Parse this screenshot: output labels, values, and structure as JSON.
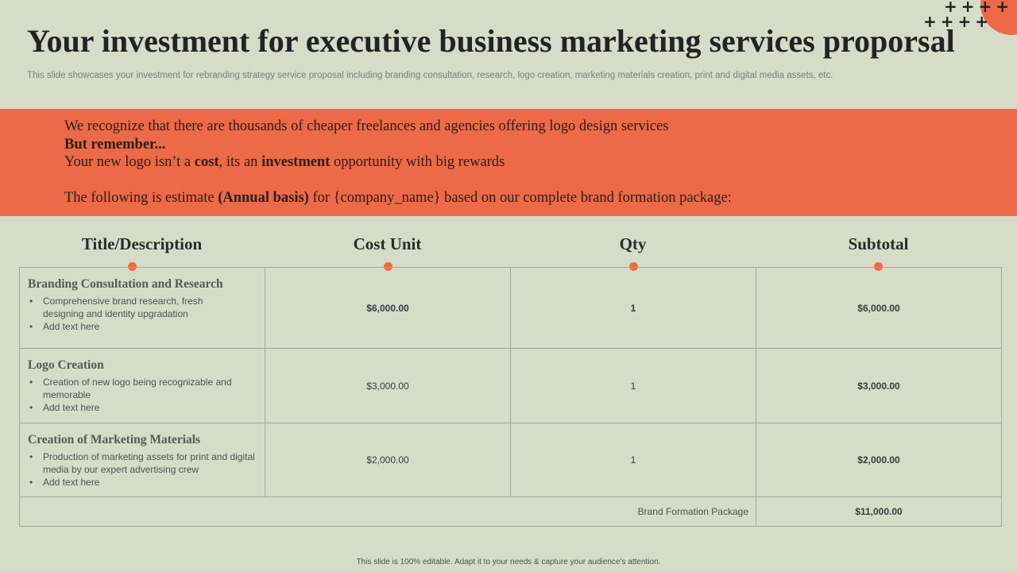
{
  "title": "Your investment for executive business marketing services proporsal",
  "subtitle": "This slide showcases your investment for rebranding strategy service proposal including branding consultation, research, logo creation, marketing materials creation, print and digital media assets, etc.",
  "decor": {
    "plus_row1": "++++",
    "plus_row2": "++++",
    "accent_color": "#ec6a47"
  },
  "banner": {
    "line1": "We recognize that there are thousands of cheaper freelances and agencies offering logo design services",
    "line2": "But remember...",
    "line3_a": "Your new logo isn’t a ",
    "line3_b": "cost",
    "line3_c": ", its an ",
    "line3_d": "investment",
    "line3_e": " opportunity with big rewards",
    "line4_a": "The following is estimate ",
    "line4_b": "(Annual basis)",
    "line4_c": " for {company_name} based on our complete brand formation package:"
  },
  "table": {
    "headers": [
      "Title/Description",
      "Cost Unit",
      "Qty",
      "Subtotal"
    ],
    "rows": [
      {
        "title": "Branding Consultation and Research",
        "bullets": [
          "Comprehensive  brand research, fresh designing and identity upgradation",
          "Add text here"
        ],
        "cost": "$6,000.00",
        "qty": "1",
        "subtotal": "$6,000.00"
      },
      {
        "title": "Logo Creation",
        "bullets": [
          "Creation of new logo being recognizable and memorable",
          "Add text here"
        ],
        "cost": "$3,000.00",
        "qty": "1",
        "subtotal": "$3,000.00"
      },
      {
        "title": "Creation of Marketing Materials",
        "bullets": [
          "Production of marketing assets for print and digital media by our expert advertising  crew",
          "Add text here"
        ],
        "cost": "$2,000.00",
        "qty": "1",
        "subtotal": "$2,000.00"
      }
    ],
    "total_label": "Brand Formation Package",
    "total_value": "$11,000.00"
  },
  "footer": "This slide is 100% editable.  Adapt it to your needs & capture your audience’s attention."
}
